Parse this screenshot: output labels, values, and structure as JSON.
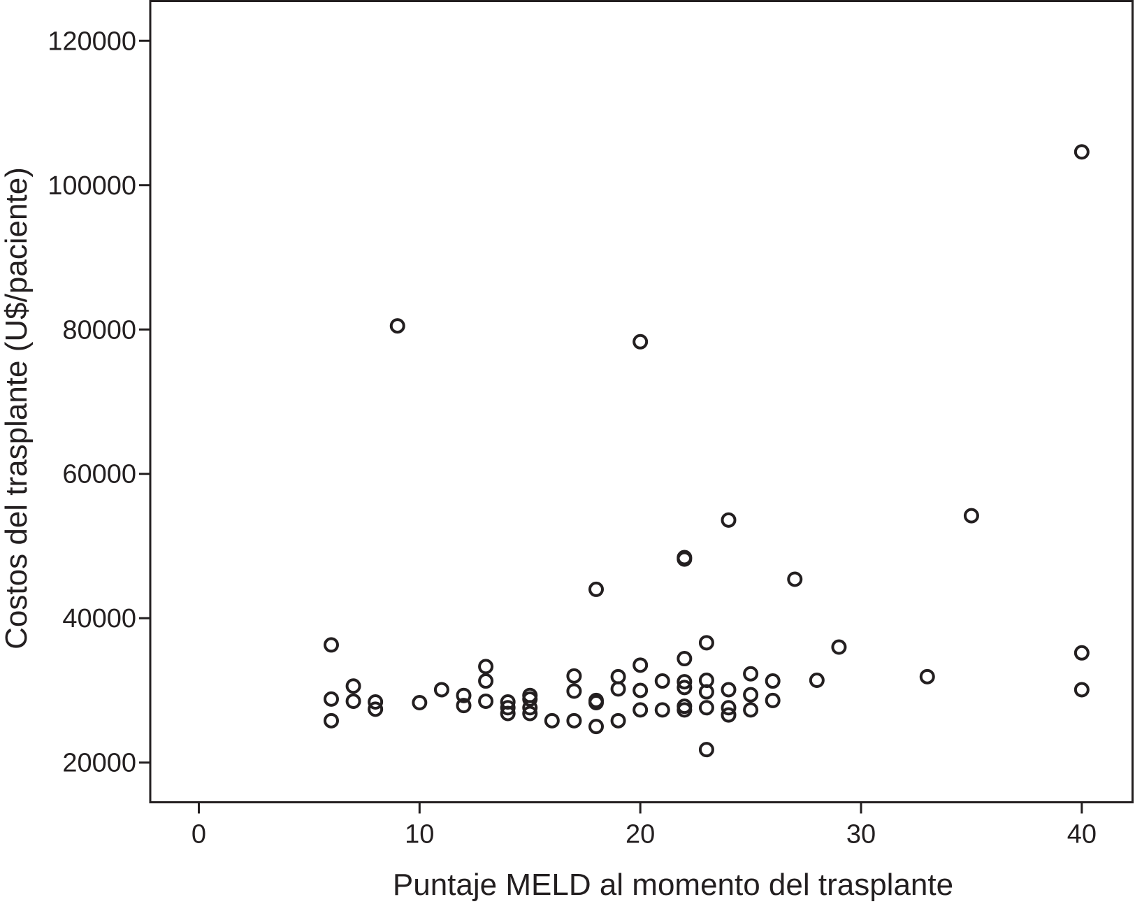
{
  "chart_data": {
    "type": "scatter",
    "title": "",
    "xlabel": "Puntaje MELD al momento del trasplante",
    "ylabel": "Costos del trasplante (U$/paciente)",
    "xlim": [
      -2.2,
      42.3
    ],
    "ylim": [
      14500,
      125500
    ],
    "x_ticks": [
      0,
      10,
      20,
      30,
      40
    ],
    "y_ticks": [
      20000,
      40000,
      60000,
      80000,
      100000,
      120000
    ],
    "x_tick_labels": [
      "0",
      "10",
      "20",
      "30",
      "40"
    ],
    "y_tick_labels": [
      "20000",
      "40000",
      "60000",
      "80000",
      "100000",
      "120000"
    ],
    "grid": false,
    "legend": "none",
    "marker": "open-circle",
    "points": [
      {
        "x": 6,
        "y": 36300
      },
      {
        "x": 6,
        "y": 28800
      },
      {
        "x": 6,
        "y": 25800
      },
      {
        "x": 7,
        "y": 30600
      },
      {
        "x": 7,
        "y": 28500
      },
      {
        "x": 8,
        "y": 28400
      },
      {
        "x": 8,
        "y": 27400
      },
      {
        "x": 9,
        "y": 80500
      },
      {
        "x": 10,
        "y": 28300
      },
      {
        "x": 11,
        "y": 30100
      },
      {
        "x": 12,
        "y": 29300
      },
      {
        "x": 12,
        "y": 27900
      },
      {
        "x": 13,
        "y": 33300
      },
      {
        "x": 13,
        "y": 31300
      },
      {
        "x": 13,
        "y": 28500
      },
      {
        "x": 14,
        "y": 28400
      },
      {
        "x": 14,
        "y": 27600
      },
      {
        "x": 14,
        "y": 26800
      },
      {
        "x": 15,
        "y": 29300
      },
      {
        "x": 15,
        "y": 28800
      },
      {
        "x": 15,
        "y": 27600
      },
      {
        "x": 15,
        "y": 26800
      },
      {
        "x": 16,
        "y": 25800
      },
      {
        "x": 17,
        "y": 32000
      },
      {
        "x": 17,
        "y": 29900
      },
      {
        "x": 17,
        "y": 25800
      },
      {
        "x": 18,
        "y": 44000
      },
      {
        "x": 18,
        "y": 28600
      },
      {
        "x": 18,
        "y": 28300
      },
      {
        "x": 18,
        "y": 25000
      },
      {
        "x": 19,
        "y": 31900
      },
      {
        "x": 19,
        "y": 30200
      },
      {
        "x": 19,
        "y": 25800
      },
      {
        "x": 20,
        "y": 78300
      },
      {
        "x": 20,
        "y": 33500
      },
      {
        "x": 20,
        "y": 30000
      },
      {
        "x": 20,
        "y": 27300
      },
      {
        "x": 21,
        "y": 31300
      },
      {
        "x": 21,
        "y": 27300
      },
      {
        "x": 22,
        "y": 48400
      },
      {
        "x": 22,
        "y": 48200
      },
      {
        "x": 22,
        "y": 34400
      },
      {
        "x": 22,
        "y": 31200
      },
      {
        "x": 22,
        "y": 30400
      },
      {
        "x": 22,
        "y": 27800
      },
      {
        "x": 22,
        "y": 27300
      },
      {
        "x": 23,
        "y": 36600
      },
      {
        "x": 23,
        "y": 31400
      },
      {
        "x": 23,
        "y": 29800
      },
      {
        "x": 23,
        "y": 27600
      },
      {
        "x": 23,
        "y": 21800
      },
      {
        "x": 24,
        "y": 53600
      },
      {
        "x": 24,
        "y": 30100
      },
      {
        "x": 24,
        "y": 27600
      },
      {
        "x": 24,
        "y": 26600
      },
      {
        "x": 25,
        "y": 32300
      },
      {
        "x": 25,
        "y": 29400
      },
      {
        "x": 25,
        "y": 27300
      },
      {
        "x": 26,
        "y": 31300
      },
      {
        "x": 26,
        "y": 28600
      },
      {
        "x": 27,
        "y": 45400
      },
      {
        "x": 28,
        "y": 31400
      },
      {
        "x": 29,
        "y": 36000
      },
      {
        "x": 33,
        "y": 31900
      },
      {
        "x": 35,
        "y": 54200
      },
      {
        "x": 40,
        "y": 104600
      },
      {
        "x": 40,
        "y": 35200
      },
      {
        "x": 40,
        "y": 30100
      }
    ]
  }
}
